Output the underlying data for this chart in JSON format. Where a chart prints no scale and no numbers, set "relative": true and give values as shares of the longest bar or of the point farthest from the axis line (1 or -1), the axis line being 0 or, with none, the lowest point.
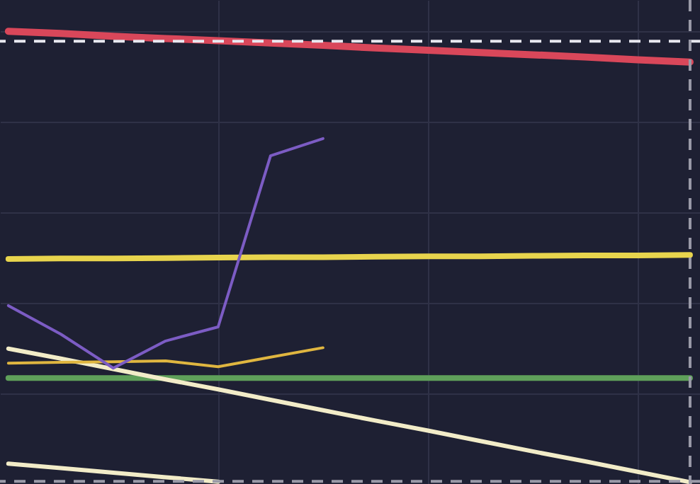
{
  "chart_data": {
    "type": "line",
    "relative": true,
    "grid": true,
    "line_style": "solid",
    "marker": "none",
    "categories": [
      null,
      null,
      null,
      null,
      null,
      null,
      null,
      null,
      null,
      null,
      null,
      null,
      null,
      null
    ],
    "series": [
      {
        "color": "#d9475a",
        "values": [
          1.0,
          0.995,
          0.989,
          0.984,
          0.979,
          0.974,
          0.969,
          0.963,
          0.958,
          0.953,
          0.948,
          0.943,
          0.937,
          0.932
        ]
      },
      {
        "color": "#e8d44d",
        "values": [
          0.497,
          0.498,
          0.498,
          0.499,
          0.5,
          0.501,
          0.501,
          0.502,
          0.503,
          0.503,
          0.504,
          0.505,
          0.505,
          0.506
        ]
      },
      {
        "color": "#5fa05a",
        "values": [
          0.234,
          0.234,
          0.234,
          0.234,
          0.234,
          0.234,
          0.234,
          0.234,
          0.234,
          0.234,
          0.234,
          0.234,
          0.234,
          0.234
        ]
      },
      {
        "color": "#f2ecc8",
        "values": [
          0.299,
          0.277,
          0.254,
          0.231,
          0.209,
          0.186,
          0.163,
          0.14,
          0.118,
          0.095,
          0.072,
          0.05,
          0.027,
          0.004
        ]
      },
      {
        "color": "#f2ecc8",
        "values": [
          0.045,
          0.035,
          0.025,
          0.015,
          0.005,
          null,
          null,
          null,
          null,
          null,
          null,
          null,
          null,
          null
        ]
      },
      {
        "color": "#e0b640",
        "values": [
          0.267,
          0.269,
          0.27,
          0.272,
          0.259,
          0.28,
          0.301,
          null,
          null,
          null,
          null,
          null,
          null,
          null
        ]
      },
      {
        "color": "#7c5cc4",
        "values": [
          0.394,
          0.331,
          0.256,
          0.316,
          0.347,
          0.725,
          0.763,
          null,
          null,
          null,
          null,
          null,
          null,
          null
        ]
      }
    ],
    "ref_lines": [
      {
        "axis": "y",
        "value": 0.978,
        "color": "#e8e8f0",
        "line_style": "dashed"
      },
      {
        "axis": "y",
        "value": 0.006,
        "color": "#9a9aa8",
        "line_style": "dashed"
      }
    ]
  }
}
